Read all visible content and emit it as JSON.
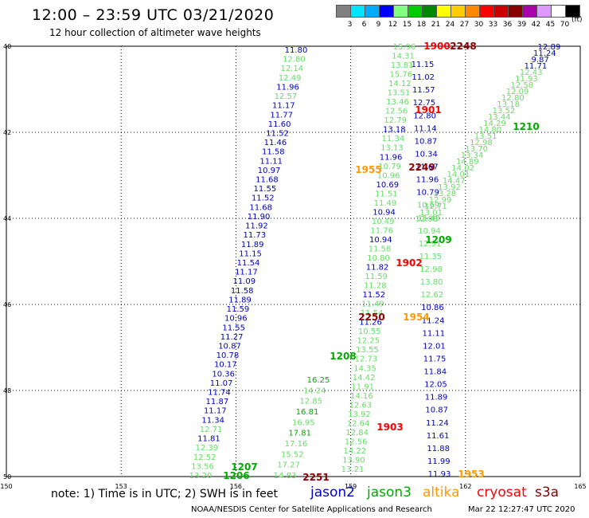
{
  "title": "12:00 – 23:59 UTC 03/21/2020",
  "subtitle": "12 hour collection of altimeter wave heights",
  "color_scale": {
    "unit": "(ft)",
    "labels": [
      "3",
      "6",
      "9",
      "12",
      "15",
      "18",
      "21",
      "24",
      "27",
      "30",
      "33",
      "36",
      "39",
      "42",
      "45",
      "70"
    ],
    "colors": [
      "#808080",
      "#00e5ff",
      "#00aaff",
      "#0000ff",
      "#80ff80",
      "#00cc00",
      "#008800",
      "#ffff00",
      "#ffcc00",
      "#ff8800",
      "#ff0000",
      "#cc0000",
      "#880000",
      "#aa00aa",
      "#dd99ff",
      "#ffffff",
      "#000000"
    ]
  },
  "axes": {
    "lon_labels": [
      "150",
      "153",
      "156",
      "159",
      "162",
      "165"
    ],
    "lat_labels": [
      "40",
      "42",
      "44",
      "46",
      "48",
      "50"
    ]
  },
  "satellites": [
    {
      "name": "jason2",
      "color": "#0000cc"
    },
    {
      "name": "jason3",
      "color": "#00aa00"
    },
    {
      "name": "altika",
      "color": "#ff9900"
    },
    {
      "name": "cryosat",
      "color": "#ff0000"
    },
    {
      "name": "s3a",
      "color": "#880000"
    }
  ],
  "note": "note:  1) Time is in UTC;  2) SWH is in feet",
  "credit": "NOAA/NESDIS Center for Satellite Applications and Research",
  "timestamp": "Mar 22 12:27:47 UTC 2020",
  "track_a_values": [
    "11.80",
    "12.80",
    "12.14",
    "12.49",
    "11.96",
    "12.57",
    "11.17",
    "11.77",
    "11.60",
    "11.52",
    "11.46",
    "11.58",
    "11.11",
    "10.97",
    "11.68",
    "11.55",
    "11.52",
    "11.68",
    "11.90",
    "11.92",
    "11.73",
    "11.89",
    "11.15",
    "11.54",
    "11.17",
    "11.09",
    "11.58",
    "11.89",
    "11.59",
    "10.96",
    "11.55",
    "11.27",
    "10.87",
    "10.78",
    "10.17",
    "10.36",
    "11.07",
    "11.74",
    "11.87",
    "11.17",
    "11.34",
    "12.71",
    "11.81",
    "12.39",
    "12.52",
    "13.56",
    "13.20"
  ],
  "track_b_values": [
    "15.96",
    "14.31",
    "13.81",
    "15.76",
    "14.12",
    "13.51",
    "13.46",
    "12.56",
    "12.79",
    "13.18",
    "11.34",
    "13.13",
    "11.96",
    "10.79",
    "10.96",
    "10.69",
    "11.51",
    "11.49",
    "10.94",
    "10.49",
    "11.76",
    "10.94",
    "11.58",
    "10.80",
    "11.82",
    "11.59",
    "11.28",
    "11.52",
    "11.49",
    "11.54",
    "11.26",
    "10.55",
    "12.25",
    "13.55",
    "12.73",
    "14.35",
    "14.42",
    "11.91",
    "14.16",
    "12.63",
    "13.92",
    "12.64",
    "12.84",
    "12.56",
    "14.22",
    "13.90",
    "13.21"
  ],
  "track_c_values": [
    "11.15",
    "11.02",
    "11.57",
    "12.75",
    "12.80",
    "11.14",
    "10.87",
    "10.34",
    "11.67",
    "11.96",
    "10.79",
    "10.69",
    "11.49",
    "10.94",
    "12.91",
    "11.35",
    "12.98",
    "13.80",
    "12.62",
    "10.86",
    "11.24",
    "11.11",
    "12.01",
    "11.75",
    "11.84",
    "12.05",
    "11.89",
    "10.87",
    "11.24",
    "11.61",
    "11.88",
    "11.99",
    "11.93"
  ],
  "track_d_values": [
    "12.89",
    "11.24",
    "9.87",
    "11.71",
    "12.43",
    "11.93",
    "12.58",
    "12.09",
    "12.80",
    "13.18",
    "13.52",
    "13.44",
    "14.29",
    "14.80",
    "13.51",
    "12.98",
    "13.70",
    "13.34",
    "14.89",
    "14.02",
    "14.01",
    "14.47",
    "13.92",
    "13.28",
    "12.99",
    "12.71",
    "13.01",
    "12.98"
  ],
  "track_e_values": [
    "16.25",
    "14.24",
    "12.85",
    "16.81",
    "16.95",
    "17.81",
    "17.16",
    "15.52",
    "17.27",
    "14.83"
  ],
  "time_labels": [
    {
      "text": "1900",
      "sat": "cryosat"
    },
    {
      "text": "2248",
      "sat": "s3a"
    },
    {
      "text": "1901",
      "sat": "cryosat"
    },
    {
      "text": "1210",
      "sat": "jason3"
    },
    {
      "text": "1955",
      "sat": "altika"
    },
    {
      "text": "2249",
      "sat": "s3a"
    },
    {
      "text": "1209",
      "sat": "jason3"
    },
    {
      "text": "1902",
      "sat": "cryosat"
    },
    {
      "text": "2250",
      "sat": "s3a"
    },
    {
      "text": "1954",
      "sat": "altika"
    },
    {
      "text": "1208",
      "sat": "jason3"
    },
    {
      "text": "1903",
      "sat": "cryosat"
    },
    {
      "text": "1207",
      "sat": "jason3"
    },
    {
      "text": "1206",
      "sat": "jason3"
    },
    {
      "text": "2251",
      "sat": "s3a"
    },
    {
      "text": "1953",
      "sat": "altika"
    }
  ]
}
